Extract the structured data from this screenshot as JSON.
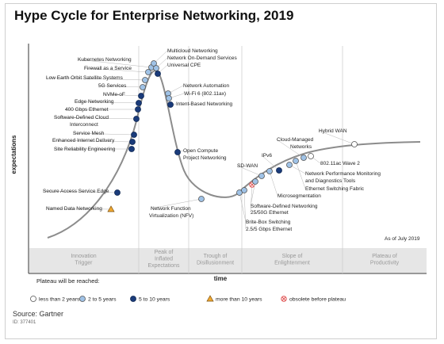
{
  "title": "Hype Cycle for Enterprise Networking, 2019",
  "as_of": "As of July 2019",
  "source": "Source: Gartner",
  "source_id": "ID: 377401",
  "legend_title": "Plateau will be reached:",
  "colors": {
    "less_than_2": "#ffffff",
    "2_to_5": "#9fc2e6",
    "5_to_10": "#1a3b7a",
    "more_than_10": "#f0a830",
    "obsolete": "#e05050",
    "curve": "#8c8c8c",
    "phase_band": "#e6e6e6"
  },
  "chart_data": {
    "type": "scatter",
    "xlabel": "time",
    "ylabel": "expectations",
    "grid": false,
    "phases": [
      "Innovation Trigger",
      "Peak of Inflated Expectations",
      "Trough of Disillusionment",
      "Slope of Enlightenment",
      "Plateau of Productivity"
    ],
    "legend": [
      {
        "key": "less_than_2",
        "label": "less than 2 years",
        "shape": "circle"
      },
      {
        "key": "2_to_5",
        "label": "2 to 5 years",
        "shape": "circle"
      },
      {
        "key": "5_to_10",
        "label": "5 to 10 years",
        "shape": "circle"
      },
      {
        "key": "more_than_10",
        "label": "more than 10 years",
        "shape": "triangle"
      },
      {
        "key": "obsolete",
        "label": "obsolete before plateau",
        "shape": "xcircle"
      }
    ],
    "technologies": [
      {
        "name": "Named Data Networking",
        "phase": "Innovation Trigger",
        "plateau": "more_than_10"
      },
      {
        "name": "Secure Access Service Edge",
        "phase": "Innovation Trigger",
        "plateau": "5_to_10"
      },
      {
        "name": "Site Reliability Engineering",
        "phase": "Innovation Trigger",
        "plateau": "5_to_10"
      },
      {
        "name": "Enhanced Internet Delivery",
        "phase": "Innovation Trigger",
        "plateau": "5_to_10"
      },
      {
        "name": "Service Mesh",
        "phase": "Innovation Trigger",
        "plateau": "5_to_10"
      },
      {
        "name": "Software-Defined Cloud Interconnect",
        "phase": "Innovation Trigger",
        "plateau": "5_to_10"
      },
      {
        "name": "400 Gbps Ethernet",
        "phase": "Innovation Trigger",
        "plateau": "5_to_10"
      },
      {
        "name": "Edge Networking",
        "phase": "Innovation Trigger",
        "plateau": "5_to_10"
      },
      {
        "name": "NVMe-oF",
        "phase": "Peak of Inflated Expectations",
        "plateau": "5_to_10"
      },
      {
        "name": "5G Services",
        "phase": "Peak of Inflated Expectations",
        "plateau": "2_to_5"
      },
      {
        "name": "Low Earth Orbit Satellite Systems",
        "phase": "Peak of Inflated Expectations",
        "plateau": "2_to_5"
      },
      {
        "name": "Firewall as a Service",
        "phase": "Peak of Inflated Expectations",
        "plateau": "2_to_5"
      },
      {
        "name": "Kubernetes Networking",
        "phase": "Peak of Inflated Expectations",
        "plateau": "2_to_5"
      },
      {
        "name": "Multicloud Networking",
        "phase": "Peak of Inflated Expectations",
        "plateau": "2_to_5"
      },
      {
        "name": "Network On-Demand Services",
        "phase": "Peak of Inflated Expectations",
        "plateau": "2_to_5"
      },
      {
        "name": "Universal CPE",
        "phase": "Peak of Inflated Expectations",
        "plateau": "5_to_10"
      },
      {
        "name": "Network Automation",
        "phase": "Peak of Inflated Expectations",
        "plateau": "2_to_5"
      },
      {
        "name": "Wi-Fi 6 (802.11ax)",
        "phase": "Peak of Inflated Expectations",
        "plateau": "2_to_5"
      },
      {
        "name": "Intent-Based Networking",
        "phase": "Peak of Inflated Expectations",
        "plateau": "5_to_10"
      },
      {
        "name": "Open Compute Project Networking",
        "phase": "Trough of Disillusionment",
        "plateau": "5_to_10"
      },
      {
        "name": "Network Function Virtualization (NFV)",
        "phase": "Trough of Disillusionment",
        "plateau": "2_to_5"
      },
      {
        "name": "Brite-Box Switching",
        "phase": "Trough of Disillusionment",
        "plateau": "2_to_5"
      },
      {
        "name": "2.5/5 Gbps Ethernet",
        "phase": "Trough of Disillusionment",
        "plateau": "2_to_5"
      },
      {
        "name": "25/50G Ethernet",
        "phase": "Slope of Enlightenment",
        "plateau": "obsolete"
      },
      {
        "name": "Software-Defined Networking",
        "phase": "Slope of Enlightenment",
        "plateau": "2_to_5"
      },
      {
        "name": "SD-WAN",
        "phase": "Slope of Enlightenment",
        "plateau": "2_to_5"
      },
      {
        "name": "Microsegmentation",
        "phase": "Slope of Enlightenment",
        "plateau": "2_to_5"
      },
      {
        "name": "IPv6",
        "phase": "Slope of Enlightenment",
        "plateau": "5_to_10"
      },
      {
        "name": "Network Performance Monitoring and Diagnostics Tools",
        "phase": "Slope of Enlightenment",
        "plateau": "2_to_5"
      },
      {
        "name": "Ethernet Switching Fabric",
        "phase": "Slope of Enlightenment",
        "plateau": "2_to_5"
      },
      {
        "name": "Cloud-Managed Networks",
        "phase": "Slope of Enlightenment",
        "plateau": "2_to_5"
      },
      {
        "name": "802.11ac Wave 2",
        "phase": "Slope of Enlightenment",
        "plateau": "less_than_2"
      },
      {
        "name": "Hybrid WAN",
        "phase": "Plateau of Productivity",
        "plateau": "less_than_2"
      }
    ]
  }
}
